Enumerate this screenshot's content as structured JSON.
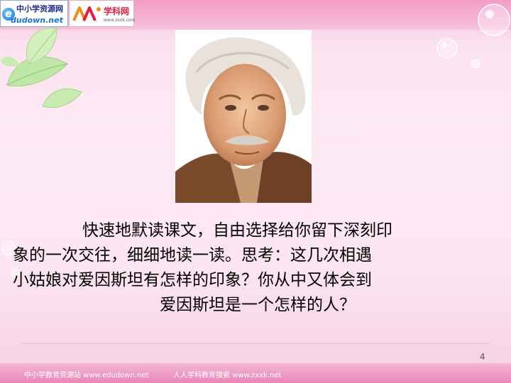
{
  "logos": {
    "left_title": "中小学资源网",
    "left_sub": "dudown.net",
    "right_title": "学科网",
    "right_sub": "www.zxxk.com"
  },
  "slide": {
    "paragraph_lines": [
      "快速地默读课文，自由选择给你留下深刻印",
      "象的一次交往，细细地读一读。思考：这几次相遇",
      "小姑娘对爱因斯坦有怎样的印象？你从中又体会到",
      "爱因斯坦是一个怎样的人？"
    ],
    "page_number": "4"
  },
  "footer": {
    "left": "中小学教育资源站 www.edudown.net",
    "right": "人人学科教育搜索 www.zxxk.net"
  },
  "colors": {
    "background": "#fbe6f1",
    "band": "#f29cc6"
  },
  "icons": [
    "leaf-decoration",
    "bubble-decoration",
    "portrait-photo"
  ]
}
